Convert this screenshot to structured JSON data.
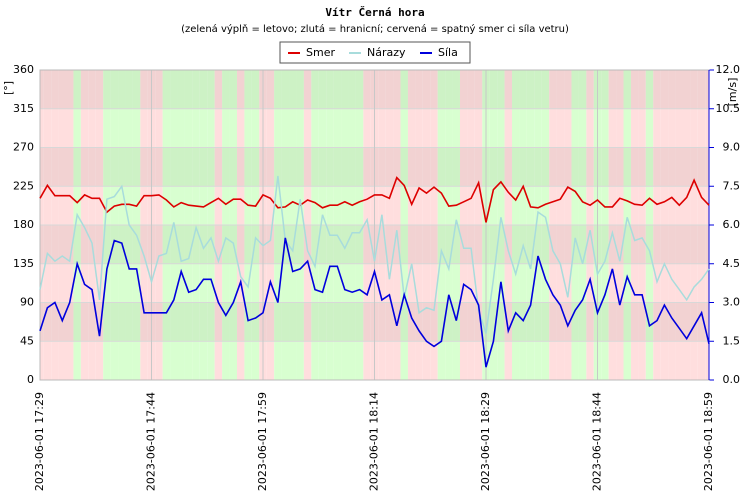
{
  "chart_data": {
    "type": "line",
    "title": "Vítr Černá hora",
    "subtitle": "(zelená výplň = letovo; zlutá = hranicní; cervená = spatný smer ci síla vetru)",
    "x": [
      "2023-06-01 17:29",
      "2023-06-01 17:30",
      "2023-06-01 17:31",
      "2023-06-01 17:32",
      "2023-06-01 17:33",
      "2023-06-01 17:34",
      "2023-06-01 17:35",
      "2023-06-01 17:36",
      "2023-06-01 17:37",
      "2023-06-01 17:38",
      "2023-06-01 17:39",
      "2023-06-01 17:40",
      "2023-06-01 17:41",
      "2023-06-01 17:42",
      "2023-06-01 17:43",
      "2023-06-01 17:44",
      "2023-06-01 17:45",
      "2023-06-01 17:46",
      "2023-06-01 17:47",
      "2023-06-01 17:48",
      "2023-06-01 17:49",
      "2023-06-01 17:50",
      "2023-06-01 17:51",
      "2023-06-01 17:52",
      "2023-06-01 17:53",
      "2023-06-01 17:54",
      "2023-06-01 17:55",
      "2023-06-01 17:56",
      "2023-06-01 17:57",
      "2023-06-01 17:58",
      "2023-06-01 17:59",
      "2023-06-01 18:00",
      "2023-06-01 18:01",
      "2023-06-01 18:02",
      "2023-06-01 18:03",
      "2023-06-01 18:04",
      "2023-06-01 18:05",
      "2023-06-01 18:06",
      "2023-06-01 18:07",
      "2023-06-01 18:08",
      "2023-06-01 18:09",
      "2023-06-01 18:10",
      "2023-06-01 18:11",
      "2023-06-01 18:12",
      "2023-06-01 18:13",
      "2023-06-01 18:14",
      "2023-06-01 18:15",
      "2023-06-01 18:16",
      "2023-06-01 18:17",
      "2023-06-01 18:18",
      "2023-06-01 18:19",
      "2023-06-01 18:20",
      "2023-06-01 18:21",
      "2023-06-01 18:22",
      "2023-06-01 18:23",
      "2023-06-01 18:24",
      "2023-06-01 18:25",
      "2023-06-01 18:26",
      "2023-06-01 18:27",
      "2023-06-01 18:28",
      "2023-06-01 18:29",
      "2023-06-01 18:30",
      "2023-06-01 18:31",
      "2023-06-01 18:32",
      "2023-06-01 18:33",
      "2023-06-01 18:34",
      "2023-06-01 18:35",
      "2023-06-01 18:36",
      "2023-06-01 18:37",
      "2023-06-01 18:38",
      "2023-06-01 18:39",
      "2023-06-01 18:40",
      "2023-06-01 18:41",
      "2023-06-01 18:42",
      "2023-06-01 18:43",
      "2023-06-01 18:44",
      "2023-06-01 18:45",
      "2023-06-01 18:46",
      "2023-06-01 18:47",
      "2023-06-01 18:48",
      "2023-06-01 18:49",
      "2023-06-01 18:50",
      "2023-06-01 18:51",
      "2023-06-01 18:52",
      "2023-06-01 18:53",
      "2023-06-01 18:54",
      "2023-06-01 18:55",
      "2023-06-01 18:56",
      "2023-06-01 18:57",
      "2023-06-01 18:58",
      "2023-06-01 18:59"
    ],
    "xticks": [
      "2023-06-01 17:29",
      "2023-06-01 17:44",
      "2023-06-01 17:59",
      "2023-06-01 18:14",
      "2023-06-01 18:29",
      "2023-06-01 18:44",
      "2023-06-01 18:59"
    ],
    "fills": [
      "#ffdede",
      "#ffdede",
      "#ffdede",
      "#ffdede",
      "#ffdede",
      "#d8ffd0",
      "#ffdede",
      "#ffdede",
      "#ffdede",
      "#d8ffd0",
      "#d8ffd0",
      "#d8ffd0",
      "#d8ffd0",
      "#d8ffd0",
      "#ffdede",
      "#ffdede",
      "#ffdede",
      "#d8ffd0",
      "#d8ffd0",
      "#d8ffd0",
      "#d8ffd0",
      "#d8ffd0",
      "#d8ffd0",
      "#d8ffd0",
      "#ffdede",
      "#d8ffd0",
      "#d8ffd0",
      "#ffdede",
      "#d8ffd0",
      "#d8ffd0",
      "#ffdede",
      "#ffdede",
      "#d8ffd0",
      "#d8ffd0",
      "#d8ffd0",
      "#d8ffd0",
      "#ffdede",
      "#d8ffd0",
      "#d8ffd0",
      "#d8ffd0",
      "#d8ffd0",
      "#d8ffd0",
      "#d8ffd0",
      "#d8ffd0",
      "#ffdede",
      "#ffdede",
      "#ffdede",
      "#ffdede",
      "#ffdede",
      "#d8ffd0",
      "#ffdede",
      "#ffdede",
      "#ffdede",
      "#ffdede",
      "#d8ffd0",
      "#d8ffd0",
      "#d8ffd0",
      "#ffdede",
      "#ffdede",
      "#ffdede",
      "#d8ffd0",
      "#d8ffd0",
      "#d8ffd0",
      "#ffdede",
      "#d8ffd0",
      "#d8ffd0",
      "#d8ffd0",
      "#d8ffd0",
      "#d8ffd0",
      "#ffdede",
      "#ffdede",
      "#ffdede",
      "#d8ffd0",
      "#d8ffd0",
      "#ffdede",
      "#d8ffd0",
      "#d8ffd0",
      "#ffdede",
      "#ffdede",
      "#d8ffd0",
      "#ffdede",
      "#ffdede",
      "#d8ffd0",
      "#ffdede",
      "#ffdede",
      "#ffdede",
      "#ffdede",
      "#ffdede",
      "#ffdede",
      "#ffdede",
      "#ffdede"
    ],
    "ylabel": "[°]",
    "y2label": "[m/s]",
    "ylim": [
      0,
      360
    ],
    "yticks": [
      0,
      45,
      90,
      135,
      180,
      225,
      270,
      315,
      360
    ],
    "y2lim": [
      0,
      12
    ],
    "y2ticks": [
      {
        "value": 0,
        "label": "0.0"
      },
      1.5,
      {
        "value": 3,
        "label": "3.0"
      },
      4.5,
      {
        "value": 6,
        "label": "6.0"
      },
      7.5,
      {
        "value": 9,
        "label": "9.0"
      },
      10.5,
      {
        "value": 12,
        "label": "12.0"
      }
    ],
    "grid": true,
    "series": [
      {
        "name": "Smer",
        "color": "#dd0000",
        "values": [
          211,
          226,
          214,
          214,
          214,
          206,
          215,
          211,
          211,
          195,
          202,
          204,
          204,
          202,
          214,
          214,
          215,
          209,
          201,
          206,
          203,
          202,
          201,
          206,
          211,
          204,
          210,
          210,
          203,
          202,
          215,
          211,
          200,
          201,
          207,
          203,
          209,
          206,
          200,
          203,
          203,
          207,
          203,
          207,
          210,
          215,
          215,
          211,
          235,
          226,
          204,
          223,
          217,
          224,
          217,
          202,
          203,
          207,
          211,
          229,
          183,
          221,
          230,
          218,
          209,
          225,
          201,
          200,
          204,
          207,
          210,
          224,
          219,
          207,
          203,
          209,
          201,
          201,
          211,
          208,
          204,
          203,
          211,
          204,
          207,
          212,
          203,
          212,
          232,
          212,
          203
        ]
      },
      {
        "name": "Nárazy",
        "color": "#a8dcdc",
        "axis": "y2",
        "values": [
          3.5,
          4.9,
          4.6,
          4.8,
          4.6,
          6.4,
          5.9,
          5.3,
          3.1,
          7.0,
          7.1,
          7.5,
          6.0,
          5.6,
          4.8,
          3.8,
          4.8,
          4.9,
          6.1,
          4.6,
          4.7,
          5.9,
          5.1,
          5.5,
          4.6,
          5.5,
          5.3,
          4.0,
          3.6,
          5.5,
          5.2,
          5.4,
          7.9,
          5.4,
          5.0,
          7.0,
          5.0,
          4.4,
          6.4,
          5.6,
          5.6,
          5.1,
          5.7,
          5.7,
          6.2,
          4.6,
          6.4,
          3.9,
          5.8,
          3.2,
          4.5,
          2.6,
          2.8,
          2.7,
          5.0,
          4.3,
          6.2,
          5.1,
          5.1,
          2.7,
          1.8,
          3.9,
          6.3,
          5.0,
          4.1,
          5.2,
          4.3,
          6.5,
          6.3,
          5.0,
          4.5,
          3.2,
          5.5,
          4.5,
          5.8,
          4.1,
          4.6,
          5.7,
          4.6,
          6.3,
          5.4,
          5.5,
          5.0,
          3.8,
          4.5,
          3.9,
          3.5,
          3.1,
          3.6,
          3.9,
          4.3
        ]
      },
      {
        "name": "Síla",
        "color": "#0000dd",
        "axis": "y2",
        "values": [
          1.9,
          2.8,
          3.0,
          2.3,
          3.0,
          4.5,
          3.7,
          3.5,
          1.7,
          4.3,
          5.4,
          5.3,
          4.3,
          4.3,
          2.6,
          2.6,
          2.6,
          2.6,
          3.1,
          4.2,
          3.4,
          3.5,
          3.9,
          3.9,
          3.0,
          2.5,
          3.0,
          3.8,
          2.3,
          2.4,
          2.6,
          3.8,
          3.0,
          5.5,
          4.2,
          4.3,
          4.6,
          3.5,
          3.4,
          4.4,
          4.4,
          3.5,
          3.4,
          3.5,
          3.3,
          4.2,
          3.1,
          3.3,
          2.1,
          3.3,
          2.4,
          1.9,
          1.5,
          1.3,
          1.5,
          3.3,
          2.3,
          3.7,
          3.5,
          2.9,
          0.5,
          1.5,
          3.8,
          1.9,
          2.6,
          2.3,
          2.9,
          4.8,
          3.9,
          3.3,
          2.9,
          2.1,
          2.7,
          3.1,
          3.9,
          2.6,
          3.3,
          4.3,
          2.9,
          4.0,
          3.3,
          3.3,
          2.1,
          2.3,
          2.9,
          2.4,
          2.0,
          1.6,
          2.1,
          2.6,
          1.4
        ]
      }
    ]
  }
}
